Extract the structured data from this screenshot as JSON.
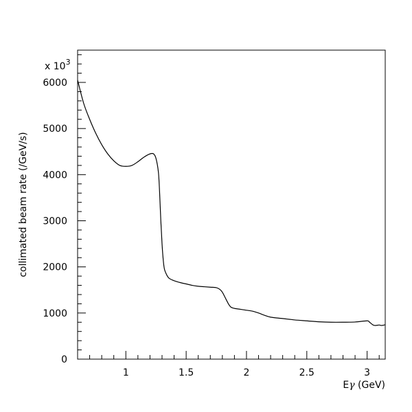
{
  "chart_data": {
    "type": "line",
    "title": "",
    "xlabel_main": "E",
    "xlabel_symbol": "γ",
    "xlabel_unit": " (GeV)",
    "ylabel": "collimated beam rate (/GeV/s)",
    "y_multiplier": {
      "base": "x 10",
      "exponent": "3"
    },
    "xlim": [
      0.6,
      3.15
    ],
    "ylim": [
      0,
      6700
    ],
    "x_ticks": [
      {
        "value": 1,
        "label": "1"
      },
      {
        "value": 1.5,
        "label": "1.5"
      },
      {
        "value": 2,
        "label": "2"
      },
      {
        "value": 2.5,
        "label": "2.5"
      },
      {
        "value": 3,
        "label": "3"
      }
    ],
    "y_ticks": [
      {
        "value": 0,
        "label": "0"
      },
      {
        "value": 1000,
        "label": "1000"
      },
      {
        "value": 2000,
        "label": "2000"
      },
      {
        "value": 3000,
        "label": "3000"
      },
      {
        "value": 4000,
        "label": "4000"
      },
      {
        "value": 5000,
        "label": "5000"
      },
      {
        "value": 6000,
        "label": "6000"
      }
    ],
    "grid": false,
    "series": [
      {
        "x": [
          0.6,
          0.65,
          0.7,
          0.75,
          0.8,
          0.85,
          0.9,
          0.95,
          1.0,
          1.05,
          1.1,
          1.15,
          1.2,
          1.23,
          1.25,
          1.27,
          1.28,
          1.29,
          1.3,
          1.31,
          1.32,
          1.34,
          1.36,
          1.4,
          1.45,
          1.5,
          1.55,
          1.6,
          1.65,
          1.7,
          1.75,
          1.78,
          1.8,
          1.83,
          1.85,
          1.87,
          1.9,
          1.95,
          2.0,
          2.05,
          2.1,
          2.15,
          2.2,
          2.3,
          2.4,
          2.5,
          2.6,
          2.7,
          2.8,
          2.9,
          3.0,
          3.02,
          3.05,
          3.07,
          3.1,
          3.12,
          3.15
        ],
        "y": [
          6050,
          5550,
          5200,
          4900,
          4650,
          4450,
          4300,
          4200,
          4180,
          4200,
          4280,
          4380,
          4450,
          4450,
          4350,
          4050,
          3600,
          3000,
          2500,
          2150,
          1950,
          1820,
          1750,
          1700,
          1660,
          1630,
          1600,
          1580,
          1570,
          1560,
          1550,
          1510,
          1450,
          1300,
          1200,
          1130,
          1100,
          1080,
          1060,
          1040,
          1000,
          950,
          910,
          880,
          850,
          830,
          810,
          800,
          800,
          805,
          830,
          800,
          740,
          730,
          740,
          730,
          745
        ]
      }
    ]
  }
}
